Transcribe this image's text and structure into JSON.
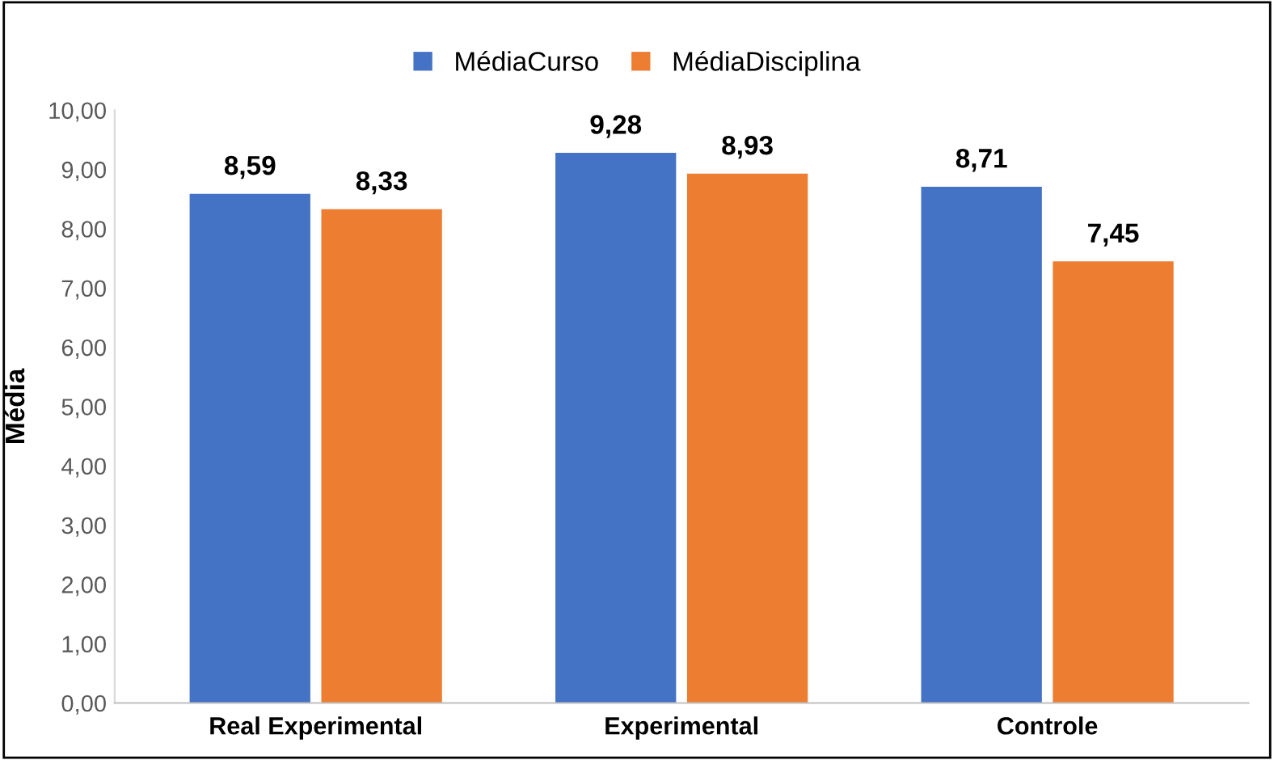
{
  "chart_data": {
    "type": "bar",
    "ylabel": "Média",
    "categories": [
      "Real Experimental",
      "Experimental",
      "Controle"
    ],
    "series": [
      {
        "name": "MédiaCurso",
        "color": "#4472c4",
        "values": [
          8.59,
          9.28,
          8.71
        ],
        "value_labels": [
          "8,59",
          "9,28",
          "8,71"
        ]
      },
      {
        "name": "MédiaDisciplina",
        "color": "#ed7d31",
        "values": [
          8.33,
          8.93,
          7.45
        ],
        "value_labels": [
          "8,33",
          "8,93",
          "7,45"
        ]
      }
    ],
    "ylim": [
      0,
      10
    ],
    "yticks": [
      {
        "value": 0,
        "label": "0,00"
      },
      {
        "value": 1,
        "label": "1,00"
      },
      {
        "value": 2,
        "label": "2,00"
      },
      {
        "value": 3,
        "label": "3,00"
      },
      {
        "value": 4,
        "label": "4,00"
      },
      {
        "value": 5,
        "label": "5,00"
      },
      {
        "value": 6,
        "label": "6,00"
      },
      {
        "value": 7,
        "label": "7,00"
      },
      {
        "value": 8,
        "label": "8,00"
      },
      {
        "value": 9,
        "label": "9,00"
      },
      {
        "value": 10,
        "label": "10,00"
      }
    ],
    "grid": false,
    "legend": "top"
  }
}
